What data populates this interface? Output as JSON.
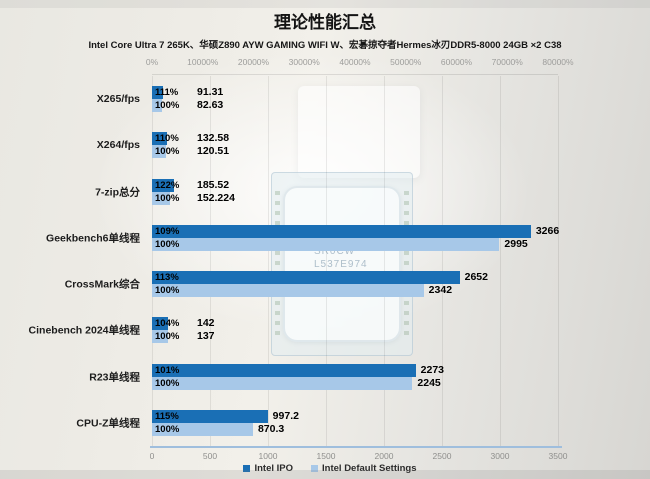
{
  "title": "理论性能汇总",
  "subtitle": "Intel Core Ultra 7 265K、华硕Z890 AYW GAMING WIFI W、宏碁掠夺者Hermes冰刃DDR5-8000 24GB ×2 C38",
  "colors": {
    "intel_ipo_bar": "#1a6fb5",
    "intel_default_bar": "#a7c8e8",
    "bottom_axis_line": "#9fbedd",
    "tick_text": "#8f8f8d"
  },
  "top_axis_ticks": [
    "0%",
    "10000%",
    "20000%",
    "30000%",
    "40000%",
    "50000%",
    "60000%",
    "70000%",
    "80000%"
  ],
  "bottom_axis_ticks": [
    "0",
    "500",
    "1000",
    "1500",
    "2000",
    "2500",
    "3000",
    "3500"
  ],
  "legend": [
    {
      "label": "Intel IPO",
      "color": "#1a6fb5"
    },
    {
      "label": "Intel Default Settings",
      "color": "#a7c8e8"
    }
  ],
  "background_cpu_markings": {
    "line1": "SR0CW",
    "line2": "L537E974"
  },
  "chart_data": {
    "type": "bar",
    "orientation": "horizontal",
    "title": "理论性能汇总",
    "xlim": [
      0,
      3500
    ],
    "secondary_axis_percent_range": [
      0,
      80000
    ],
    "grid": true,
    "legend_position": "bottom",
    "categories": [
      "X265/fps",
      "X264/fps",
      "7-zip总分",
      "Geekbench6单线程",
      "CrossMark综合",
      "Cinebench 2024单线程",
      "R23单线程",
      "CPU-Z单线程"
    ],
    "series": [
      {
        "name": "Intel IPO",
        "values": [
          91.31,
          132.58,
          185.52,
          3266,
          2652,
          142,
          2273,
          997.2
        ],
        "value_labels": [
          "91.31",
          "132.58",
          "185.52",
          "3266",
          "2652",
          "142",
          "2273",
          "997.2"
        ],
        "percent_labels": [
          "111%",
          "110%",
          "122%",
          "109%",
          "113%",
          "104%",
          "101%",
          "115%"
        ]
      },
      {
        "name": "Intel Default Settings",
        "values": [
          82.63,
          120.51,
          152.224,
          2995,
          2342,
          137,
          2245,
          870.3
        ],
        "value_labels": [
          "82.63",
          "120.51",
          "152.224",
          "2995",
          "2342",
          "137",
          "2245",
          "870.3"
        ],
        "percent_labels": [
          "100%",
          "100%",
          "100%",
          "100%",
          "100%",
          "100%",
          "100%",
          "100%"
        ]
      }
    ]
  }
}
